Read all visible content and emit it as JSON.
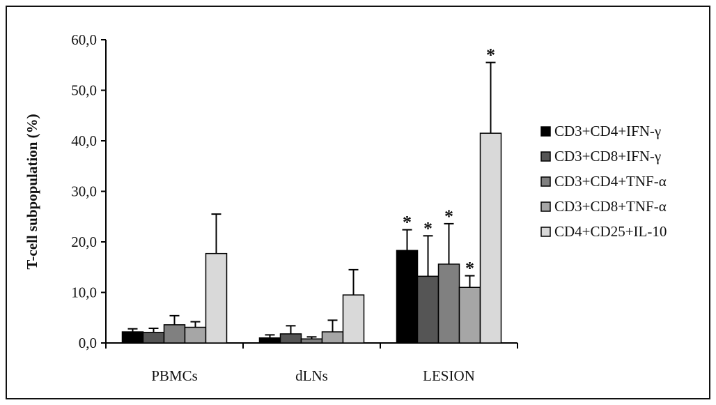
{
  "chart_data": {
    "type": "bar",
    "ylabel": "T-cell subpopulation (%)",
    "xlabel": "",
    "ylim": [
      0,
      60
    ],
    "y_ticks": [
      "0,0",
      "10,0",
      "20,0",
      "30,0",
      "40,0",
      "50,0",
      "60,0"
    ],
    "y_tick_values": [
      0,
      10,
      20,
      30,
      40,
      50,
      60
    ],
    "categories": [
      "PBMCs",
      "dLNs",
      "LESION"
    ],
    "series": [
      {
        "name": "CD3+CD4+IFN-γ",
        "color": "#000000",
        "values": [
          2.2,
          1.0,
          18.3
        ],
        "errors": [
          0.6,
          0.6,
          4.1
        ],
        "significant": [
          false,
          false,
          true
        ]
      },
      {
        "name": "CD3+CD8+IFN-γ",
        "color": "#555555",
        "values": [
          2.1,
          1.8,
          13.2
        ],
        "errors": [
          0.8,
          1.6,
          8.0
        ],
        "significant": [
          false,
          false,
          true
        ]
      },
      {
        "name": "CD3+CD4+TNF-α",
        "color": "#808080",
        "values": [
          3.6,
          0.8,
          15.6
        ],
        "errors": [
          1.8,
          0.4,
          8.0
        ],
        "significant": [
          false,
          false,
          true
        ]
      },
      {
        "name": "CD3+CD8+TNF-α",
        "color": "#a6a6a6",
        "values": [
          3.1,
          2.2,
          11.0
        ],
        "errors": [
          1.1,
          2.3,
          2.3
        ],
        "significant": [
          false,
          false,
          true
        ]
      },
      {
        "name": "CD4+CD25+IL-10",
        "color": "#d9d9d9",
        "values": [
          17.7,
          9.5,
          41.5
        ],
        "errors": [
          7.8,
          5.0,
          14.0
        ],
        "significant": [
          false,
          false,
          true
        ]
      }
    ],
    "significance_marker": "*",
    "grid": false,
    "legend_position": "right"
  }
}
